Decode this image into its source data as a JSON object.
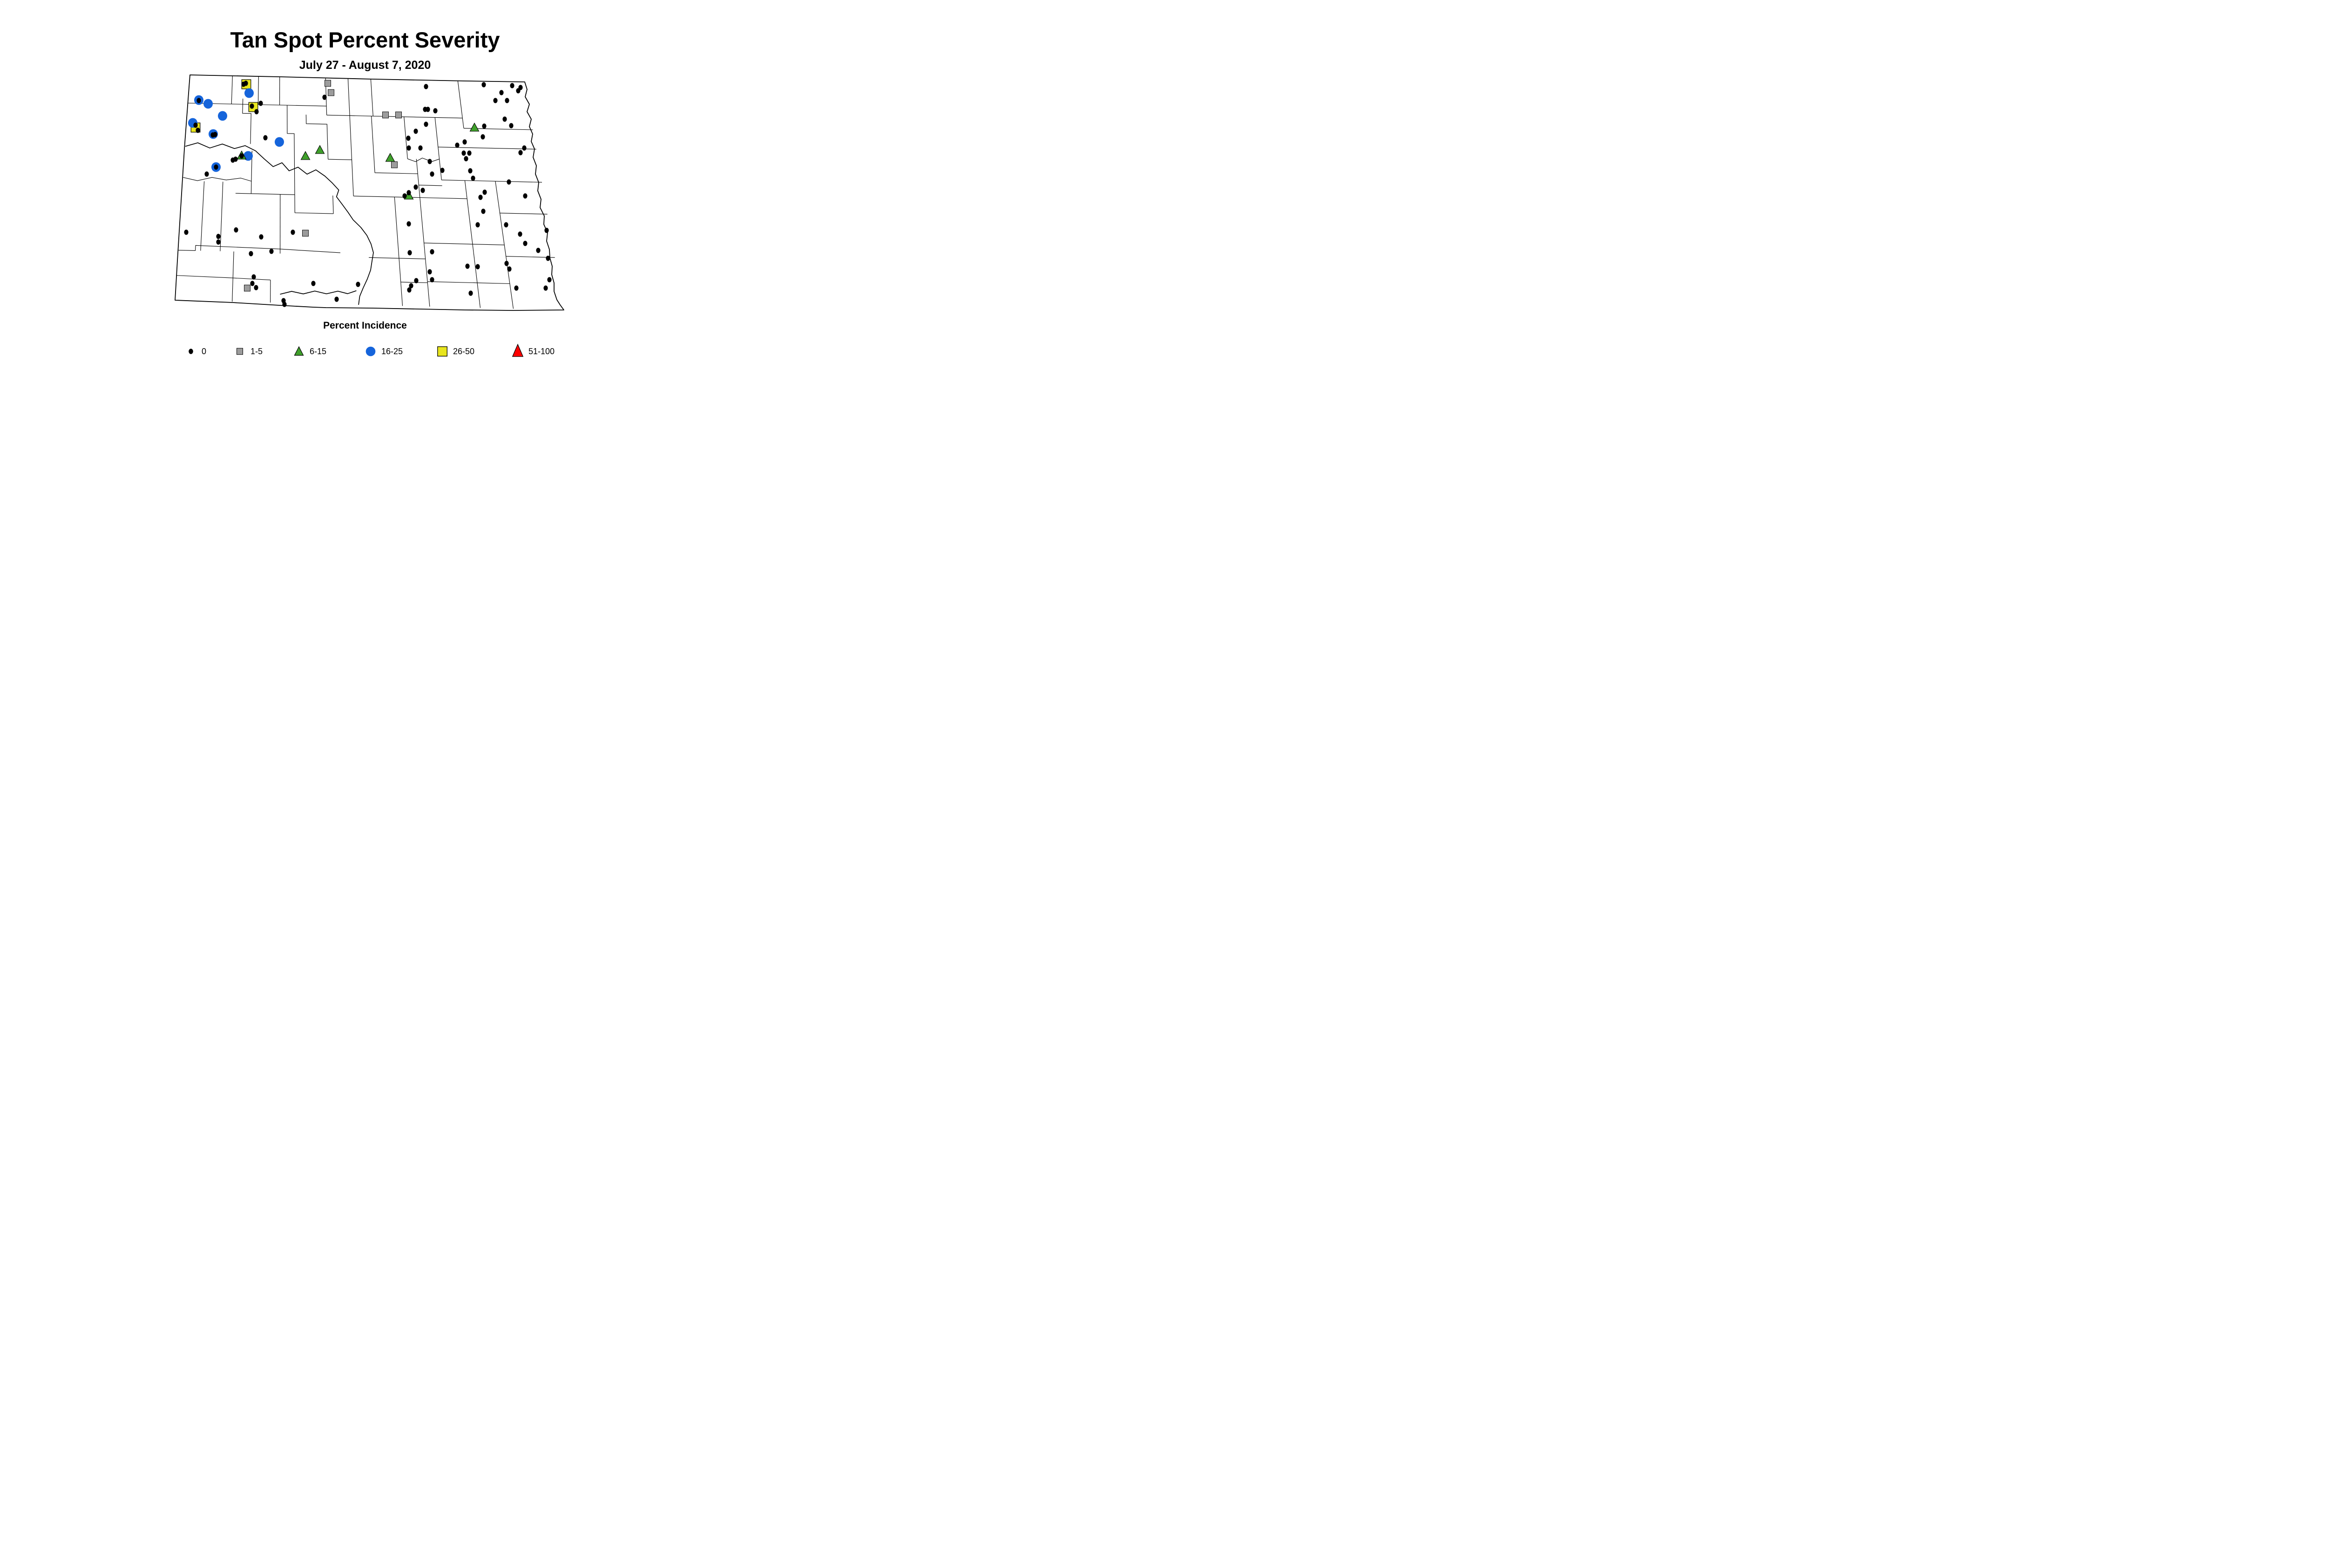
{
  "title": "Tan Spot Percent Severity",
  "subtitle": "July 27 - August 7, 2020",
  "legend": {
    "title": "Percent Incidence",
    "items": [
      {
        "label": "0",
        "shape": "dot",
        "color": "#000000"
      },
      {
        "label": "1-5",
        "shape": "square",
        "color": "#9C9C9C"
      },
      {
        "label": "6-15",
        "shape": "triangle",
        "color": "#3FA02B"
      },
      {
        "label": "16-25",
        "shape": "circle",
        "color": "#1564DB"
      },
      {
        "label": "26-50",
        "shape": "square",
        "color": "#E8E51D"
      },
      {
        "label": "51-100",
        "shape": "triangle",
        "color": "#FE0000"
      }
    ]
  },
  "map": {
    "region": "North Dakota counties",
    "marker_colors": {
      "dot": "#000000",
      "gray_square": "#9C9C9C",
      "green_triangle": "#3FA02B",
      "blue_circle": "#1564DB",
      "yellow_square": "#E8E51D",
      "red_triangle": "#FE0000"
    },
    "markers": {
      "yellow_square": [
        [
          529,
          181
        ],
        [
          544,
          230
        ],
        [
          420,
          274
        ]
      ],
      "gray_square": [
        [
          704,
          179
        ],
        [
          711,
          199
        ],
        [
          828,
          247
        ],
        [
          856,
          247
        ],
        [
          847,
          354
        ],
        [
          656,
          501
        ],
        [
          531,
          619
        ]
      ],
      "blue_circle": [
        [
          427,
          215
        ],
        [
          447,
          223
        ],
        [
          535,
          200
        ],
        [
          478,
          249
        ],
        [
          414,
          264
        ],
        [
          458,
          288
        ],
        [
          600,
          305
        ],
        [
          533,
          335
        ],
        [
          464,
          359
        ]
      ],
      "green_triangle": [
        [
          519,
          334
        ],
        [
          656,
          335
        ],
        [
          687,
          322
        ],
        [
          838,
          339
        ],
        [
          878,
          420
        ],
        [
          1019,
          274
        ]
      ],
      "red_triangle": [],
      "dot": [
        [
          523,
          181
        ],
        [
          528,
          179
        ],
        [
          427,
          216
        ],
        [
          541,
          228
        ],
        [
          560,
          222
        ],
        [
          551,
          240
        ],
        [
          420,
          269
        ],
        [
          425,
          280
        ],
        [
          457,
          290
        ],
        [
          462,
          289
        ],
        [
          570,
          296
        ],
        [
          519,
          335
        ],
        [
          500,
          344
        ],
        [
          506,
          342
        ],
        [
          697,
          209
        ],
        [
          915,
          186
        ],
        [
          913,
          235
        ],
        [
          919,
          235
        ],
        [
          935,
          238
        ],
        [
          915,
          267
        ],
        [
          893,
          282
        ],
        [
          877,
          297
        ],
        [
          878,
          318
        ],
        [
          903,
          318
        ],
        [
          1039,
          182
        ],
        [
          1100,
          184
        ],
        [
          1118,
          188
        ],
        [
          1113,
          195
        ],
        [
          1077,
          199
        ],
        [
          1064,
          216
        ],
        [
          1089,
          216
        ],
        [
          1084,
          256
        ],
        [
          1040,
          271
        ],
        [
          1098,
          270
        ],
        [
          1037,
          294
        ],
        [
          998,
          305
        ],
        [
          982,
          312
        ],
        [
          996,
          329
        ],
        [
          1008,
          329
        ],
        [
          1126,
          318
        ],
        [
          1118,
          328
        ],
        [
          464,
          359
        ],
        [
          444,
          374
        ],
        [
          400,
          499
        ],
        [
          507,
          494
        ],
        [
          469,
          508
        ],
        [
          469,
          520
        ],
        [
          561,
          509
        ],
        [
          629,
          499
        ],
        [
          583,
          540
        ],
        [
          539,
          545
        ],
        [
          545,
          595
        ],
        [
          542,
          609
        ],
        [
          550,
          618
        ],
        [
          673,
          609
        ],
        [
          609,
          646
        ],
        [
          611,
          654
        ],
        [
          880,
          543
        ],
        [
          928,
          541
        ],
        [
          923,
          584
        ],
        [
          894,
          603
        ],
        [
          928,
          601
        ],
        [
          883,
          614
        ],
        [
          879,
          623
        ],
        [
          769,
          611
        ],
        [
          723,
          643
        ],
        [
          1156,
          538
        ],
        [
          1177,
          555
        ],
        [
          1004,
          572
        ],
        [
          1026,
          573
        ],
        [
          1088,
          566
        ],
        [
          1094,
          578
        ],
        [
          1180,
          601
        ],
        [
          1109,
          619
        ],
        [
          1172,
          619
        ],
        [
          1011,
          630
        ],
        [
          1001,
          341
        ],
        [
          1010,
          367
        ],
        [
          1016,
          383
        ],
        [
          1093,
          391
        ],
        [
          1041,
          413
        ],
        [
          1032,
          424
        ],
        [
          1128,
          421
        ],
        [
          1038,
          454
        ],
        [
          1026,
          483
        ],
        [
          1087,
          483
        ],
        [
          1174,
          495
        ],
        [
          1117,
          503
        ],
        [
          1128,
          523
        ],
        [
          923,
          347
        ],
        [
          950,
          366
        ],
        [
          928,
          374
        ],
        [
          893,
          402
        ],
        [
          908,
          409
        ],
        [
          878,
          414
        ],
        [
          869,
          421
        ],
        [
          878,
          481
        ]
      ]
    }
  }
}
